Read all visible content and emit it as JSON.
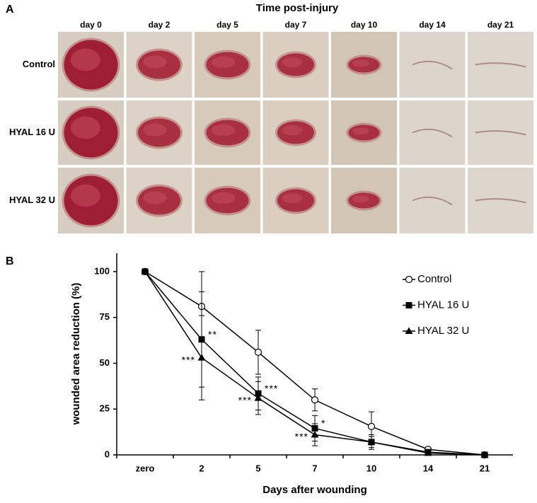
{
  "panel_a": {
    "label": "A",
    "title": "Time post-injury",
    "days": [
      "day 0",
      "day 2",
      "day 5",
      "day 7",
      "day 10",
      "day 14",
      "day 21"
    ],
    "groups": [
      "Control",
      "HYAL 16 U",
      "HYAL 32 U"
    ]
  },
  "chart_data": {
    "type": "line",
    "panel_label": "B",
    "x_label": "Days after wounding",
    "y_label": "wounded area reduction (%)",
    "categories": [
      "zero",
      "2",
      "5",
      "7",
      "10",
      "14",
      "21"
    ],
    "ylim": [
      0,
      110
    ],
    "yticks": [
      0,
      25,
      50,
      75,
      100
    ],
    "grid": false,
    "legend": "upper right",
    "series": [
      {
        "name": "Control",
        "color": "#000000",
        "marker": "circle-open",
        "values": [
          100,
          81,
          56,
          30,
          15.5,
          3,
          0
        ],
        "errors": [
          0,
          19,
          12,
          6,
          8,
          1,
          0
        ]
      },
      {
        "name": "HYAL 16 U",
        "color": "#000000",
        "marker": "square",
        "values": [
          100,
          63,
          33.5,
          14.5,
          7,
          1.5,
          0
        ],
        "errors": [
          0,
          26,
          9,
          7,
          4,
          1,
          0
        ],
        "significance": [
          null,
          "**",
          "***",
          "*",
          null,
          null,
          null
        ]
      },
      {
        "name": "HYAL 32 U",
        "color": "#000000",
        "marker": "triangle",
        "values": [
          100,
          53,
          31,
          11,
          7,
          1,
          0
        ],
        "errors": [
          0,
          23,
          9,
          6,
          3,
          1,
          0
        ],
        "significance": [
          null,
          "***",
          "***",
          "***",
          null,
          null,
          null
        ]
      }
    ]
  }
}
